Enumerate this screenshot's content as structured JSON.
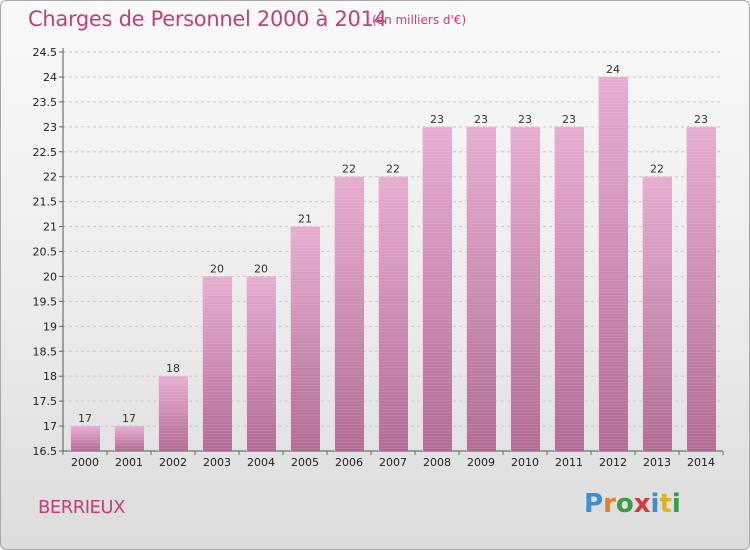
{
  "header": {
    "title": "Charges de Personnel 2000 à 2014",
    "subtitle": "(en milliers d'€)"
  },
  "commune": "BERRIEUX",
  "logo": {
    "text": "Proxiti",
    "letters": [
      {
        "char": "P",
        "color": "#3b8fd0"
      },
      {
        "char": "r",
        "color": "#e0802a"
      },
      {
        "char": "o",
        "color": "#3a9a4a"
      },
      {
        "char": "x",
        "color": "#d63a3a"
      },
      {
        "char": "i",
        "color": "#3b8fd0"
      },
      {
        "char": "t",
        "color": "#e0b02a"
      },
      {
        "char": "i",
        "color": "#3a9a4a"
      }
    ]
  },
  "colors": {
    "bar_light": "#e7acd0",
    "bar_dark": "#b06b95",
    "title": "#c2407a",
    "grid": "#c8c8c8"
  },
  "chart_data": {
    "type": "bar",
    "categories": [
      "2000",
      "2001",
      "2002",
      "2003",
      "2004",
      "2005",
      "2006",
      "2007",
      "2008",
      "2009",
      "2010",
      "2011",
      "2012",
      "2013",
      "2014"
    ],
    "values": [
      17,
      17,
      18,
      20,
      20,
      21,
      22,
      22,
      23,
      23,
      23,
      23,
      24,
      22,
      23
    ],
    "data_labels": [
      "17",
      "17",
      "18",
      "20",
      "20",
      "21",
      "22",
      "22",
      "23",
      "23",
      "23",
      "23",
      "24",
      "22",
      "23"
    ],
    "title": "Charges de Personnel 2000 à 2014",
    "subtitle": "(en milliers d'€)",
    "xlabel": "",
    "ylabel": "",
    "ylim": [
      16.5,
      24.5
    ],
    "yticks": [
      16.5,
      17,
      17.5,
      18,
      18.5,
      19,
      19.5,
      20,
      20.5,
      21,
      21.5,
      22,
      22.5,
      23,
      23.5,
      24,
      24.5
    ],
    "ytick_labels": [
      "16.5",
      "17",
      "17.5",
      "18",
      "18.5",
      "19",
      "19.5",
      "20",
      "20.5",
      "21",
      "21.5",
      "22",
      "22.5",
      "23",
      "23.5",
      "24",
      "24.5"
    ],
    "grid": true
  }
}
